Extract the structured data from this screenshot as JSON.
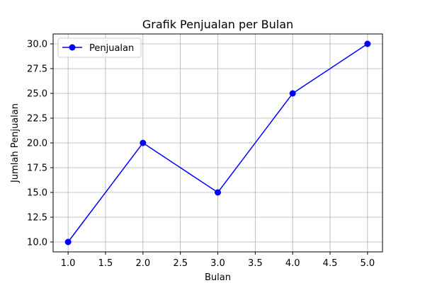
{
  "chart_data": {
    "type": "line",
    "title": "Grafik Penjualan per Bulan",
    "xlabel": "Bulan",
    "ylabel": "Jumlah Penjualan",
    "xlim": [
      0.8,
      5.2
    ],
    "ylim": [
      9.0,
      31.0
    ],
    "x_ticks": [
      1.0,
      1.5,
      2.0,
      2.5,
      3.0,
      3.5,
      4.0,
      4.5,
      5.0
    ],
    "x_tick_labels": [
      "1.0",
      "1.5",
      "2.0",
      "2.5",
      "3.0",
      "3.5",
      "4.0",
      "4.5",
      "5.0"
    ],
    "y_ticks": [
      10.0,
      12.5,
      15.0,
      17.5,
      20.0,
      22.5,
      25.0,
      27.5,
      30.0
    ],
    "y_tick_labels": [
      "10.0",
      "12.5",
      "15.0",
      "17.5",
      "20.0",
      "22.5",
      "25.0",
      "27.5",
      "30.0"
    ],
    "grid": true,
    "legend_position": "top-left",
    "series": [
      {
        "name": "Penjualan",
        "color": "#0000ff",
        "marker": "circle",
        "x": [
          1,
          2,
          3,
          4,
          5
        ],
        "y": [
          10,
          20,
          15,
          25,
          30
        ]
      }
    ]
  }
}
